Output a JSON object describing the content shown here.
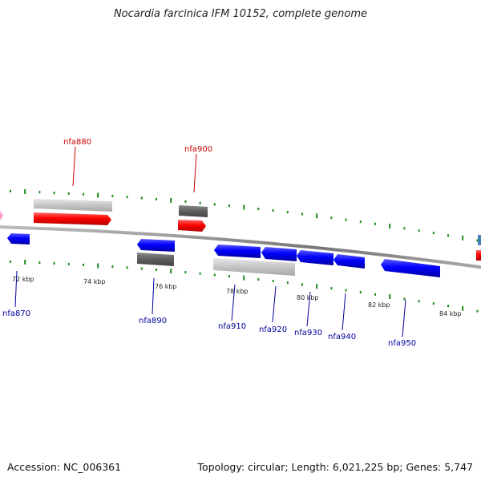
{
  "title": "Nocardia farcinica IFM 10152, complete genome",
  "footer": {
    "accession_label": "Accession:",
    "accession": "NC_006361",
    "topology_label": "Topology:",
    "topology": "circular",
    "length_label": "Length:",
    "length": "6,021,225 bp",
    "genes_label": "Genes:",
    "genes": "5,747"
  },
  "colors": {
    "forward_cds": "#ff0000",
    "reverse_cds": "#0000ff",
    "gene_grey": "#c8c8c8",
    "gene_dark_grey": "#666666",
    "tick_green": "#1a8a1a",
    "backbone": "#888888",
    "forward_label": "#cc0000",
    "reverse_label": "#000099"
  },
  "ticks": [
    {
      "label": "72 kbp"
    },
    {
      "label": "74 kbp"
    },
    {
      "label": "76 kbp"
    },
    {
      "label": "78 kbp"
    },
    {
      "label": "80 kbp"
    },
    {
      "label": "82 kbp"
    },
    {
      "label": "84 kbp"
    }
  ],
  "gene_labels": [
    {
      "name": "nfa870",
      "strand": "reverse"
    },
    {
      "name": "nfa880",
      "strand": "forward"
    },
    {
      "name": "nfa890",
      "strand": "reverse"
    },
    {
      "name": "nfa900",
      "strand": "forward"
    },
    {
      "name": "nfa910",
      "strand": "reverse"
    },
    {
      "name": "nfa920",
      "strand": "reverse"
    },
    {
      "name": "nfa930",
      "strand": "reverse"
    },
    {
      "name": "nfa940",
      "strand": "reverse"
    },
    {
      "name": "nfa950",
      "strand": "reverse"
    }
  ]
}
